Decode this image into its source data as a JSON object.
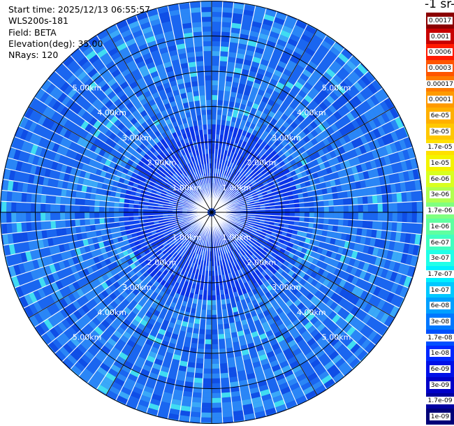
{
  "info": {
    "start_time": "Start time: 2025/12/13 06:55:57",
    "instrument": "WLS200s-181",
    "field": "Field: BETA",
    "elevation": "Elevation(deg): 35.00",
    "nrays": "NRays: 120"
  },
  "colorbar": {
    "title": "-1 sr-",
    "labels": [
      "0.0017",
      "0.001",
      "0.0006",
      "0.0003",
      "0.00017",
      "0.0001",
      "6e-05",
      "3e-05",
      "1.7e-05",
      "1e-05",
      "6e-06",
      "3e-06",
      "1.7e-06",
      "1e-06",
      "6e-07",
      "3e-07",
      "1.7e-07",
      "1e-07",
      "6e-08",
      "3e-08",
      "1.7e-08",
      "1e-08",
      "6e-09",
      "3e-09",
      "1.7e-09",
      "1e-09"
    ],
    "colors": [
      "#8b0000",
      "#c80000",
      "#ff1a00",
      "#ff5500",
      "#ff7b00",
      "#ff9a00",
      "#ffb000",
      "#ffc800",
      "#ffe000",
      "#f4f400",
      "#d8ff20",
      "#b0ff50",
      "#80ff80",
      "#5fffa0",
      "#40ffc0",
      "#20ffe8",
      "#00f0ff",
      "#00c8ff",
      "#00a0ff",
      "#0078ff",
      "#0050ff",
      "#0028ff",
      "#0010e8",
      "#0000c8",
      "#0000a0",
      "#000078"
    ]
  },
  "chart_data": {
    "type": "heatmap",
    "projection": "polar (PPI)",
    "nrays": 120,
    "range_rings_km": [
      1.0,
      2.0,
      3.0,
      4.0,
      5.0
    ],
    "ring_labels": [
      "1.00km",
      "2.00km",
      "3.00km",
      "4.00km",
      "5.00km"
    ],
    "max_range_km": 6.0,
    "dominant_value_range": [
      "3e-08",
      "1e-07"
    ],
    "colormap": "jet"
  }
}
